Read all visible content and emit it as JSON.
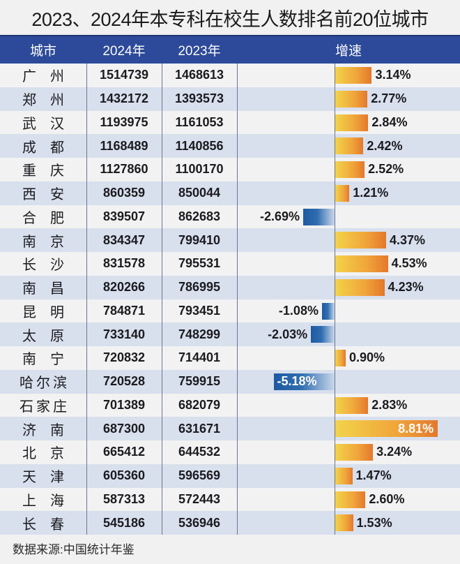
{
  "title": "2023、2024年本专科在校生人数排名前20位城市",
  "header": {
    "city": "城市",
    "y2024": "2024年",
    "y2023": "2023年",
    "growth": "增速"
  },
  "colors": {
    "header_bg": "#2c4a99",
    "row_odd": "#f2f2f2",
    "row_even": "#d8e0ee",
    "positive_bar": "#f0a53a",
    "negative_bar": "#2f6db0"
  },
  "rows": [
    {
      "city": "广 州",
      "y2024": "1514739",
      "y2023": "1468613",
      "growth": 3.14,
      "growth_label": "3.14%"
    },
    {
      "city": "郑 州",
      "y2024": "1432172",
      "y2023": "1393573",
      "growth": 2.77,
      "growth_label": "2.77%"
    },
    {
      "city": "武 汉",
      "y2024": "1193975",
      "y2023": "1161053",
      "growth": 2.84,
      "growth_label": "2.84%"
    },
    {
      "city": "成 都",
      "y2024": "1168489",
      "y2023": "1140856",
      "growth": 2.42,
      "growth_label": "2.42%"
    },
    {
      "city": "重 庆",
      "y2024": "1127860",
      "y2023": "1100170",
      "growth": 2.52,
      "growth_label": "2.52%"
    },
    {
      "city": "西 安",
      "y2024": "860359",
      "y2023": "850044",
      "growth": 1.21,
      "growth_label": "1.21%"
    },
    {
      "city": "合 肥",
      "y2024": "839507",
      "y2023": "862683",
      "growth": -2.69,
      "growth_label": "-2.69%"
    },
    {
      "city": "南 京",
      "y2024": "834347",
      "y2023": "799410",
      "growth": 4.37,
      "growth_label": "4.37%"
    },
    {
      "city": "长 沙",
      "y2024": "831578",
      "y2023": "795531",
      "growth": 4.53,
      "growth_label": "4.53%"
    },
    {
      "city": "南 昌",
      "y2024": "820266",
      "y2023": "786995",
      "growth": 4.23,
      "growth_label": "4.23%"
    },
    {
      "city": "昆 明",
      "y2024": "784871",
      "y2023": "793451",
      "growth": -1.08,
      "growth_label": "-1.08%"
    },
    {
      "city": "太 原",
      "y2024": "733140",
      "y2023": "748299",
      "growth": -2.03,
      "growth_label": "-2.03%"
    },
    {
      "city": "南 宁",
      "y2024": "720832",
      "y2023": "714401",
      "growth": 0.9,
      "growth_label": "0.90%"
    },
    {
      "city": "哈尔滨",
      "y2024": "720528",
      "y2023": "759915",
      "growth": -5.18,
      "growth_label": "-5.18%"
    },
    {
      "city": "石家庄",
      "y2024": "701389",
      "y2023": "682079",
      "growth": 2.83,
      "growth_label": "2.83%"
    },
    {
      "city": "济 南",
      "y2024": "687300",
      "y2023": "631671",
      "growth": 8.81,
      "growth_label": "8.81%"
    },
    {
      "city": "北 京",
      "y2024": "665412",
      "y2023": "644532",
      "growth": 3.24,
      "growth_label": "3.24%"
    },
    {
      "city": "天 津",
      "y2024": "605360",
      "y2023": "596569",
      "growth": 1.47,
      "growth_label": "1.47%"
    },
    {
      "city": "上 海",
      "y2024": "587313",
      "y2023": "572443",
      "growth": 2.6,
      "growth_label": "2.60%"
    },
    {
      "city": "长 春",
      "y2024": "545186",
      "y2023": "536946",
      "growth": 1.53,
      "growth_label": "1.53%"
    }
  ],
  "source": "数据来源:中国统计年鉴",
  "chart_data": {
    "type": "table",
    "title": "2023、2024年本专科在校生人数排名前20位城市",
    "columns": [
      "城市",
      "2024年",
      "2023年",
      "增速"
    ],
    "categories": [
      "广州",
      "郑州",
      "武汉",
      "成都",
      "重庆",
      "西安",
      "合肥",
      "南京",
      "长沙",
      "南昌",
      "昆明",
      "太原",
      "南宁",
      "哈尔滨",
      "石家庄",
      "济南",
      "北京",
      "天津",
      "上海",
      "长春"
    ],
    "series": [
      {
        "name": "2024年",
        "values": [
          1514739,
          1432172,
          1193975,
          1168489,
          1127860,
          860359,
          839507,
          834347,
          831578,
          820266,
          784871,
          733140,
          720832,
          720528,
          701389,
          687300,
          665412,
          605360,
          587313,
          545186
        ]
      },
      {
        "name": "2023年",
        "values": [
          1468613,
          1393573,
          1161053,
          1140856,
          1100170,
          850044,
          862683,
          799410,
          795531,
          786995,
          793451,
          748299,
          714401,
          759915,
          682079,
          631671,
          644532,
          596569,
          572443,
          536946
        ]
      },
      {
        "name": "增速(%)",
        "type": "bar",
        "values": [
          3.14,
          2.77,
          2.84,
          2.42,
          2.52,
          1.21,
          -2.69,
          4.37,
          4.53,
          4.23,
          -1.08,
          -2.03,
          0.9,
          -5.18,
          2.83,
          8.81,
          3.24,
          1.47,
          2.6,
          1.53
        ]
      }
    ],
    "note": "数据来源:中国统计年鉴"
  }
}
